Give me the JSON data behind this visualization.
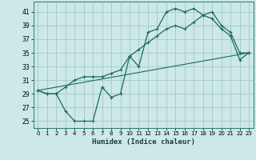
{
  "xlabel": "Humidex (Indice chaleur)",
  "bg_color": "#cce8e8",
  "grid_color": "#aacccc",
  "line_color": "#1a6b5a",
  "xlim": [
    -0.5,
    23.5
  ],
  "ylim": [
    24.0,
    42.5
  ],
  "xticks": [
    0,
    1,
    2,
    3,
    4,
    5,
    6,
    7,
    8,
    9,
    10,
    11,
    12,
    13,
    14,
    15,
    16,
    17,
    18,
    19,
    20,
    21,
    22,
    23
  ],
  "yticks": [
    25,
    27,
    29,
    31,
    33,
    35,
    37,
    39,
    41
  ],
  "line1_x": [
    0,
    1,
    2,
    3,
    4,
    5,
    6,
    7,
    8,
    9,
    10,
    11,
    12,
    13,
    14,
    15,
    16,
    17,
    18,
    19,
    20,
    21,
    22,
    23
  ],
  "line1_y": [
    29.5,
    29,
    29,
    26.5,
    25,
    25,
    25,
    30,
    28.5,
    29,
    34.5,
    33,
    38,
    38.5,
    41,
    41.5,
    41,
    41.5,
    40.5,
    40,
    38.5,
    37.5,
    34,
    35
  ],
  "line2_x": [
    0,
    1,
    2,
    3,
    4,
    5,
    6,
    7,
    8,
    9,
    10,
    11,
    12,
    13,
    14,
    15,
    16,
    17,
    18,
    19,
    20,
    21,
    22,
    23
  ],
  "line2_y": [
    29.5,
    29,
    29,
    30,
    31,
    31.5,
    31.5,
    31.5,
    32,
    32.5,
    34.5,
    35.5,
    36.5,
    37.5,
    38.5,
    39,
    38.5,
    39.5,
    40.5,
    41,
    39,
    38,
    35,
    35
  ],
  "trend_x": [
    0,
    23
  ],
  "trend_y": [
    29.5,
    35
  ]
}
